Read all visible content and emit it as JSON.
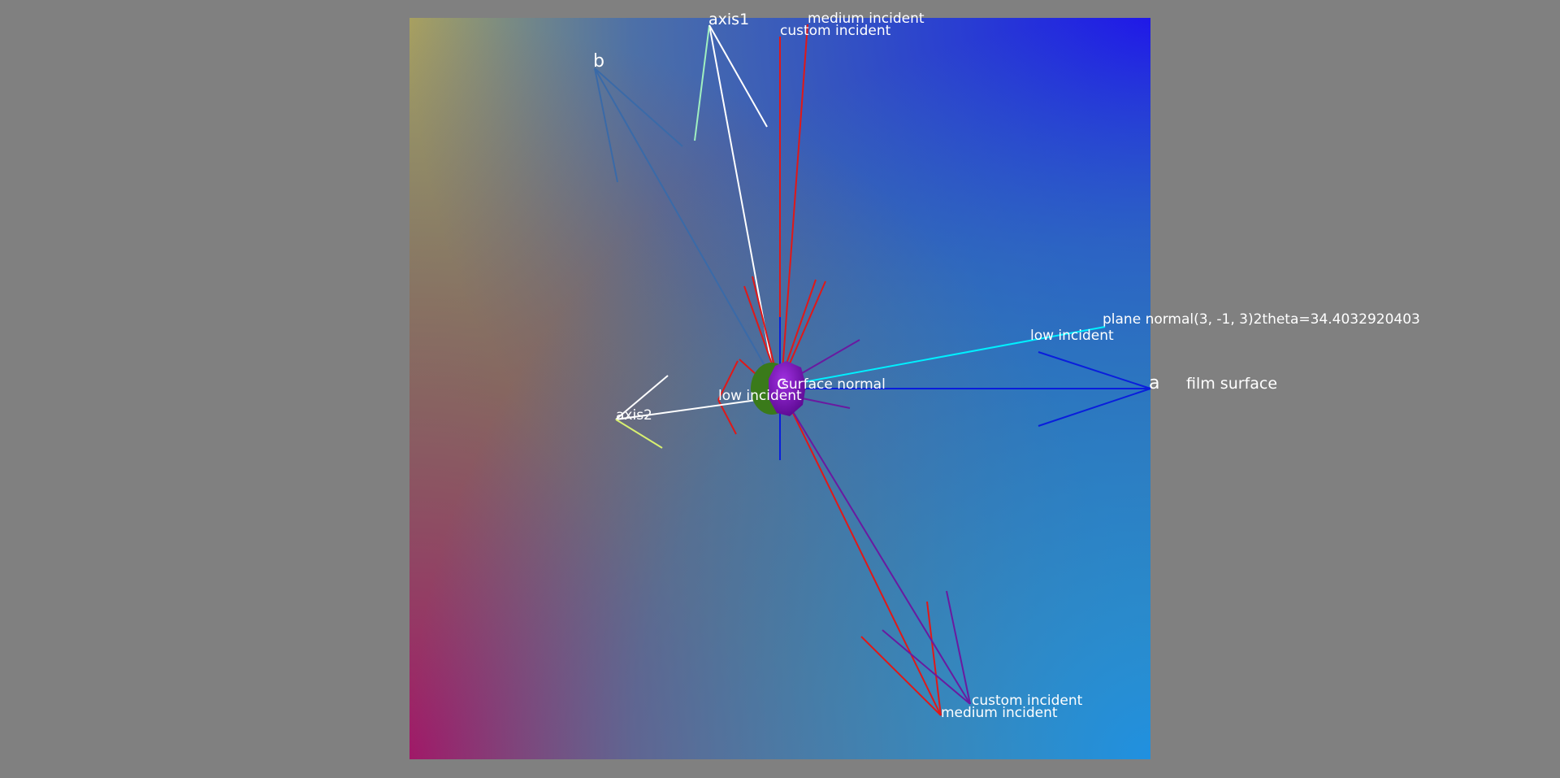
{
  "window": {
    "background": "#808080"
  },
  "labels": {
    "axis1": "axis1",
    "axis2": "axis2",
    "a": "a",
    "b": "b",
    "c": "c",
    "film_surface": "film surface",
    "surface_normal": "surface normal",
    "plane_normal": "plane normal(3, -1, 3)2theta=34.4032920403",
    "low_incident_right": "low incident",
    "low_incident_left": "low incident",
    "medium_incident_top": "medium incident",
    "custom_incident_top": "custom incident",
    "custom_incident_bottom": "custom incident",
    "medium_incident_bottom": "medium incident"
  },
  "colors": {
    "axis_white": "#ffffff",
    "a_blue": "#0a1edc",
    "b_steel": "#3a6aa8",
    "incident_red": "#e01818",
    "incident_purple": "#6a1aa0",
    "plane_cyan": "#00f0ff",
    "axis2_yellow": "#d8f070",
    "axis1_mint": "#a0f0c0",
    "sample_purple": "#7a10b0",
    "sample_green": "#3a7a1a"
  }
}
